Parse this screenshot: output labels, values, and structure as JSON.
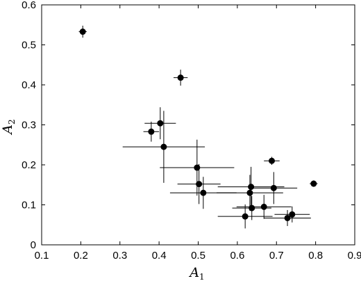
{
  "chart_data": {
    "type": "scatter",
    "title": "",
    "xlabel": {
      "main": "A",
      "sub": "1"
    },
    "ylabel": {
      "main": "A",
      "sub": "2"
    },
    "xlim": [
      0.1,
      0.9
    ],
    "ylim": [
      0,
      0.6
    ],
    "xticks": [
      "0.1",
      "0.2",
      "0.3",
      "0.4",
      "0.5",
      "0.6",
      "0.7",
      "0.8",
      "0.9"
    ],
    "yticks": [
      "0",
      "0.1",
      "0.2",
      "0.3",
      "0.4",
      "0.5",
      "0.6"
    ],
    "grid": false,
    "points": [
      {
        "x": 0.205,
        "y": 0.533,
        "xerr": 0.01,
        "yerr": 0.015
      },
      {
        "x": 0.455,
        "y": 0.418,
        "xerr": 0.018,
        "yerr": 0.02
      },
      {
        "x": 0.38,
        "y": 0.283,
        "xerr": 0.02,
        "yerr": 0.025
      },
      {
        "x": 0.403,
        "y": 0.304,
        "xerr": 0.04,
        "yerr": 0.04
      },
      {
        "x": 0.412,
        "y": 0.245,
        "xerr": 0.105,
        "yerr": 0.09
      },
      {
        "x": 0.497,
        "y": 0.193,
        "xerr": 0.095,
        "yerr": 0.07
      },
      {
        "x": 0.502,
        "y": 0.152,
        "xerr": 0.055,
        "yerr": 0.05
      },
      {
        "x": 0.513,
        "y": 0.13,
        "xerr": 0.085,
        "yerr": 0.04
      },
      {
        "x": 0.688,
        "y": 0.21,
        "xerr": 0.02,
        "yerr": 0.01
      },
      {
        "x": 0.795,
        "y": 0.153,
        "xerr": 0.01,
        "yerr": 0.008
      },
      {
        "x": 0.635,
        "y": 0.145,
        "xerr": 0.085,
        "yerr": 0.05
      },
      {
        "x": 0.632,
        "y": 0.13,
        "xerr": 0.085,
        "yerr": 0.045
      },
      {
        "x": 0.693,
        "y": 0.142,
        "xerr": 0.06,
        "yerr": 0.04
      },
      {
        "x": 0.637,
        "y": 0.092,
        "xerr": 0.05,
        "yerr": 0.03
      },
      {
        "x": 0.668,
        "y": 0.095,
        "xerr": 0.07,
        "yerr": 0.03
      },
      {
        "x": 0.62,
        "y": 0.071,
        "xerr": 0.07,
        "yerr": 0.03
      },
      {
        "x": 0.728,
        "y": 0.067,
        "xerr": 0.06,
        "yerr": 0.02
      },
      {
        "x": 0.74,
        "y": 0.076,
        "xerr": 0.045,
        "yerr": 0.02
      }
    ]
  }
}
